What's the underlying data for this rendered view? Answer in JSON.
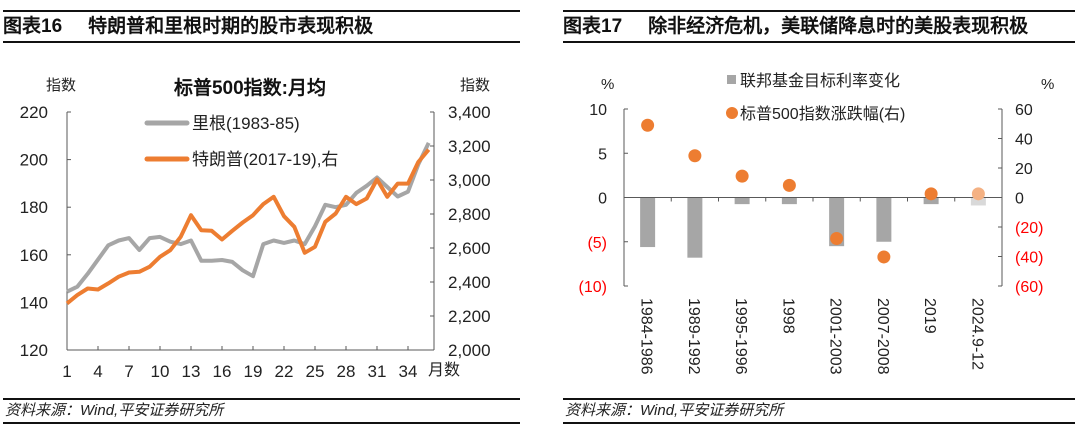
{
  "left_panel": {
    "figure_no": "图表16",
    "title": "特朗普和里根时期的股市表现积极",
    "source": "资料来源：Wind,平安证券研究所"
  },
  "right_panel": {
    "figure_no": "图表17",
    "title": "除非经济危机，美联储降息时的美股表现积极",
    "source": "资料来源：Wind,平安证券研究所"
  },
  "chart_data": [
    {
      "type": "line",
      "title": "标普500指数:月均",
      "ylabel_left": "指数",
      "ylabel_right": "指数",
      "xlabel": "月数",
      "x": [
        1,
        2,
        3,
        4,
        5,
        6,
        7,
        8,
        9,
        10,
        11,
        12,
        13,
        14,
        15,
        16,
        17,
        18,
        19,
        20,
        21,
        22,
        23,
        24,
        25,
        26,
        27,
        28,
        29,
        30,
        31,
        32,
        33,
        34,
        35,
        36
      ],
      "x_ticks": [
        "1",
        "4",
        "7",
        "10",
        "13",
        "16",
        "19",
        "22",
        "25",
        "28",
        "31",
        "34"
      ],
      "ylim_left": [
        120,
        220
      ],
      "yticks_left": [
        "120",
        "140",
        "160",
        "180",
        "200",
        "220"
      ],
      "ylim_right": [
        2000,
        3400
      ],
      "yticks_right": [
        "2,000",
        "2,200",
        "2,400",
        "2,600",
        "2,800",
        "3,000",
        "3,200",
        "3,400"
      ],
      "legend_placement": "top-center",
      "series": [
        {
          "name": "里根(1983-85)",
          "axis": "left",
          "color": "#a6a6a6",
          "values": [
            144.5,
            146.6,
            152,
            158,
            164,
            166,
            167,
            162,
            167,
            167.5,
            165.5,
            164.5,
            166,
            157.5,
            157.5,
            157.8,
            157,
            153.5,
            151,
            164.5,
            166,
            165,
            166,
            164.5,
            172,
            181,
            180,
            181,
            186,
            189,
            192.5,
            188.5,
            184.5,
            186.5,
            198,
            207
          ]
        },
        {
          "name": "特朗普(2017-19),右",
          "axis": "right",
          "color": "#ed7d31",
          "values": [
            2274,
            2323,
            2362,
            2356,
            2392,
            2431,
            2456,
            2460,
            2490,
            2548,
            2587,
            2666,
            2793,
            2705,
            2701,
            2650,
            2701,
            2750,
            2793,
            2858,
            2901,
            2787,
            2725,
            2572,
            2607,
            2754,
            2803,
            2901,
            2858,
            2891,
            3003,
            2901,
            2979,
            2979,
            3106,
            3179
          ]
        }
      ]
    },
    {
      "type": "bar",
      "categories": [
        "1984-1986",
        "1989-1992",
        "1995-1996",
        "1998",
        "2001-2003",
        "2007-2008",
        "2019",
        "2024.9-12"
      ],
      "ylabel_left": "%",
      "ylabel_right": "%",
      "ylim_left": [
        -10,
        10
      ],
      "yticks_left": [
        "(10)",
        "(5)",
        "0",
        "5",
        "10"
      ],
      "ylim_right": [
        -60,
        60
      ],
      "yticks_right": [
        "(60)",
        "(40)",
        "(20)",
        "0",
        "20",
        "40",
        "60"
      ],
      "negative_tick_color": "#ff0000",
      "legend_placement": "top-center",
      "series": [
        {
          "name": "联邦基金目标利率变化",
          "kind": "bar",
          "axis": "left",
          "color": "#a6a6a6",
          "highlight_last_color": "#d9d9d9",
          "values": [
            -5.6,
            -6.8,
            -0.75,
            -0.75,
            -5.5,
            -5.0,
            -0.75,
            -0.9
          ]
        },
        {
          "name": "标普500指数涨跌幅(右)",
          "kind": "scatter",
          "axis": "right",
          "color": "#ed7d31",
          "highlight_last_color": "#f4b183",
          "values": [
            49,
            28.3,
            14.5,
            8.2,
            -27.8,
            -40.3,
            2.5,
            2.5
          ]
        }
      ]
    }
  ]
}
